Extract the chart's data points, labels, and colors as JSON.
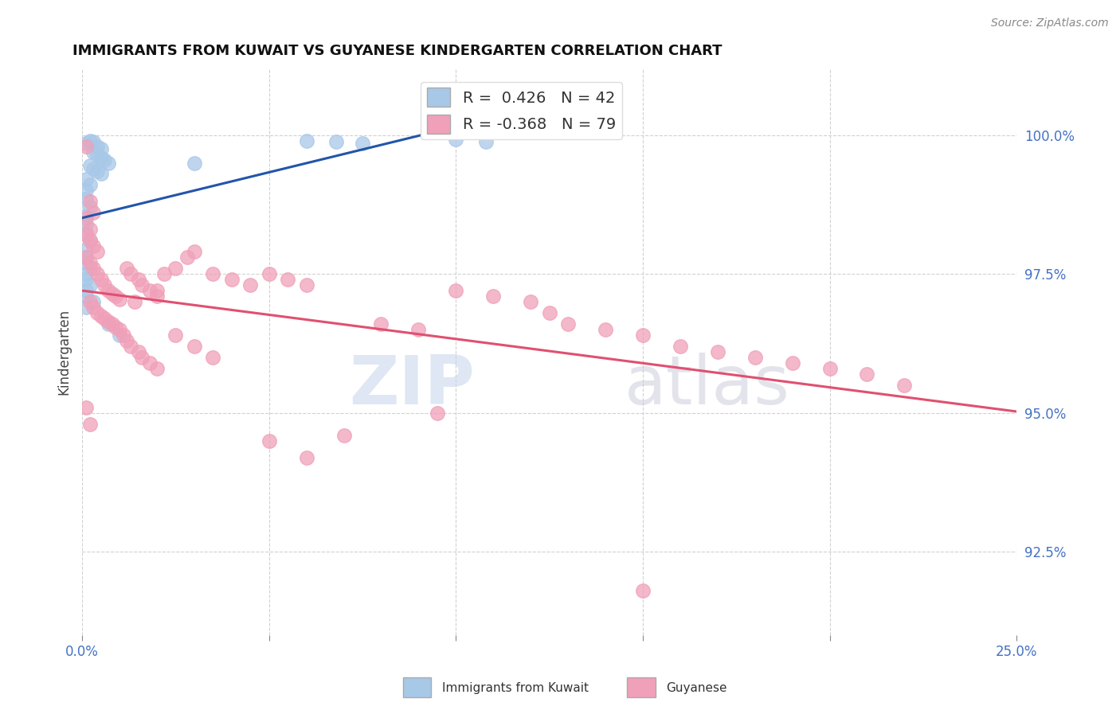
{
  "title": "IMMIGRANTS FROM KUWAIT VS GUYANESE KINDERGARTEN CORRELATION CHART",
  "source": "Source: ZipAtlas.com",
  "ylabel": "Kindergarten",
  "yticks": [
    92.5,
    95.0,
    97.5,
    100.0
  ],
  "ytick_labels": [
    "92.5%",
    "95.0%",
    "97.5%",
    "100.0%"
  ],
  "xlim": [
    0.0,
    0.25
  ],
  "ylim": [
    91.0,
    101.2
  ],
  "legend_blue_r": "0.426",
  "legend_blue_n": "42",
  "legend_pink_r": "-0.368",
  "legend_pink_n": "79",
  "blue_color": "#a8c8e8",
  "pink_color": "#f0a0b8",
  "blue_line_color": "#2255aa",
  "pink_line_color": "#e05070",
  "watermark_zip": "ZIP",
  "watermark_atlas": "atlas",
  "blue_scatter": [
    [
      0.001,
      99.85
    ],
    [
      0.002,
      99.9
    ],
    [
      0.003,
      99.88
    ],
    [
      0.004,
      99.8
    ],
    [
      0.005,
      99.75
    ],
    [
      0.003,
      99.7
    ],
    [
      0.004,
      99.65
    ],
    [
      0.005,
      99.6
    ],
    [
      0.006,
      99.55
    ],
    [
      0.007,
      99.5
    ],
    [
      0.002,
      99.45
    ],
    [
      0.003,
      99.4
    ],
    [
      0.004,
      99.35
    ],
    [
      0.005,
      99.3
    ],
    [
      0.001,
      99.2
    ],
    [
      0.002,
      99.1
    ],
    [
      0.001,
      99.0
    ],
    [
      0.001,
      98.85
    ],
    [
      0.002,
      98.7
    ],
    [
      0.001,
      98.55
    ],
    [
      0.001,
      98.4
    ],
    [
      0.001,
      98.25
    ],
    [
      0.002,
      98.1
    ],
    [
      0.001,
      97.95
    ],
    [
      0.001,
      97.8
    ],
    [
      0.001,
      97.7
    ],
    [
      0.002,
      97.6
    ],
    [
      0.001,
      97.5
    ],
    [
      0.001,
      97.4
    ],
    [
      0.002,
      97.3
    ],
    [
      0.001,
      97.2
    ],
    [
      0.001,
      97.1
    ],
    [
      0.003,
      97.0
    ],
    [
      0.001,
      96.9
    ],
    [
      0.007,
      96.6
    ],
    [
      0.06,
      99.9
    ],
    [
      0.068,
      99.88
    ],
    [
      0.075,
      99.85
    ],
    [
      0.1,
      99.92
    ],
    [
      0.108,
      99.88
    ],
    [
      0.03,
      99.5
    ],
    [
      0.01,
      96.4
    ]
  ],
  "pink_scatter": [
    [
      0.001,
      99.8
    ],
    [
      0.002,
      98.8
    ],
    [
      0.003,
      98.6
    ],
    [
      0.001,
      98.5
    ],
    [
      0.002,
      98.3
    ],
    [
      0.001,
      98.2
    ],
    [
      0.002,
      98.1
    ],
    [
      0.003,
      98.0
    ],
    [
      0.004,
      97.9
    ],
    [
      0.001,
      97.8
    ],
    [
      0.002,
      97.7
    ],
    [
      0.003,
      97.6
    ],
    [
      0.004,
      97.5
    ],
    [
      0.005,
      97.4
    ],
    [
      0.006,
      97.3
    ],
    [
      0.007,
      97.2
    ],
    [
      0.008,
      97.15
    ],
    [
      0.009,
      97.1
    ],
    [
      0.01,
      97.05
    ],
    [
      0.002,
      97.0
    ],
    [
      0.003,
      96.9
    ],
    [
      0.004,
      96.8
    ],
    [
      0.005,
      96.75
    ],
    [
      0.006,
      96.7
    ],
    [
      0.007,
      96.65
    ],
    [
      0.008,
      96.6
    ],
    [
      0.009,
      96.55
    ],
    [
      0.01,
      96.5
    ],
    [
      0.012,
      97.6
    ],
    [
      0.013,
      97.5
    ],
    [
      0.015,
      97.4
    ],
    [
      0.016,
      97.3
    ],
    [
      0.018,
      97.2
    ],
    [
      0.02,
      97.1
    ],
    [
      0.014,
      97.0
    ],
    [
      0.011,
      96.4
    ],
    [
      0.012,
      96.3
    ],
    [
      0.013,
      96.2
    ],
    [
      0.015,
      96.1
    ],
    [
      0.016,
      96.0
    ],
    [
      0.018,
      95.9
    ],
    [
      0.02,
      95.8
    ],
    [
      0.022,
      97.5
    ],
    [
      0.025,
      97.6
    ],
    [
      0.028,
      97.8
    ],
    [
      0.03,
      97.9
    ],
    [
      0.035,
      97.5
    ],
    [
      0.04,
      97.4
    ],
    [
      0.045,
      97.3
    ],
    [
      0.02,
      97.2
    ],
    [
      0.025,
      96.4
    ],
    [
      0.03,
      96.2
    ],
    [
      0.035,
      96.0
    ],
    [
      0.05,
      97.5
    ],
    [
      0.055,
      97.4
    ],
    [
      0.06,
      97.3
    ],
    [
      0.08,
      96.6
    ],
    [
      0.09,
      96.5
    ],
    [
      0.1,
      97.2
    ],
    [
      0.11,
      97.1
    ],
    [
      0.12,
      97.0
    ],
    [
      0.125,
      96.8
    ],
    [
      0.13,
      96.6
    ],
    [
      0.14,
      96.5
    ],
    [
      0.15,
      96.4
    ],
    [
      0.16,
      96.2
    ],
    [
      0.17,
      96.1
    ],
    [
      0.18,
      96.0
    ],
    [
      0.19,
      95.9
    ],
    [
      0.2,
      95.8
    ],
    [
      0.21,
      95.7
    ],
    [
      0.22,
      95.5
    ],
    [
      0.05,
      94.5
    ],
    [
      0.06,
      94.2
    ],
    [
      0.07,
      94.6
    ],
    [
      0.095,
      95.0
    ],
    [
      0.15,
      91.8
    ],
    [
      0.001,
      95.1
    ],
    [
      0.002,
      94.8
    ]
  ]
}
